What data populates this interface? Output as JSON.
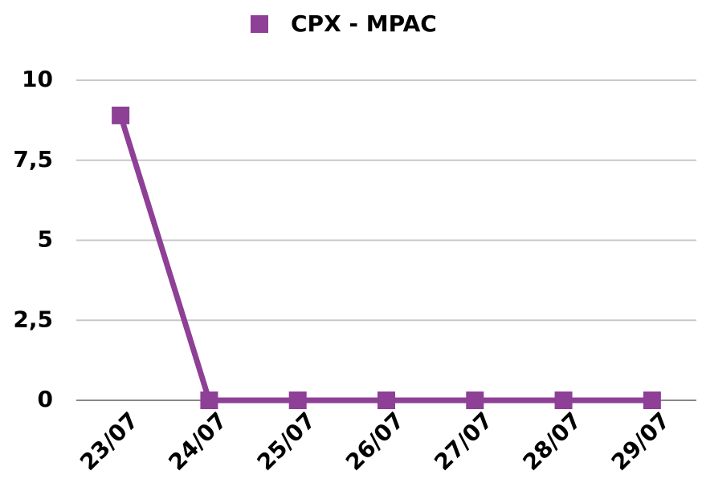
{
  "chart_data": {
    "type": "line",
    "categories": [
      "23/07",
      "24/07",
      "25/07",
      "26/07",
      "27/07",
      "28/07",
      "29/07"
    ],
    "series": [
      {
        "name": "CPX - MPAC",
        "color": "#8e3f96",
        "values": [
          8.9,
          0,
          0,
          0,
          0,
          0,
          0
        ]
      }
    ],
    "ylim": [
      0,
      10
    ],
    "yticks": [
      0,
      {
        "value": 2.5,
        "label": "2,5"
      },
      5,
      {
        "value": 7.5,
        "label": "7,5"
      },
      10
    ],
    "grid": true,
    "legend": "top"
  }
}
